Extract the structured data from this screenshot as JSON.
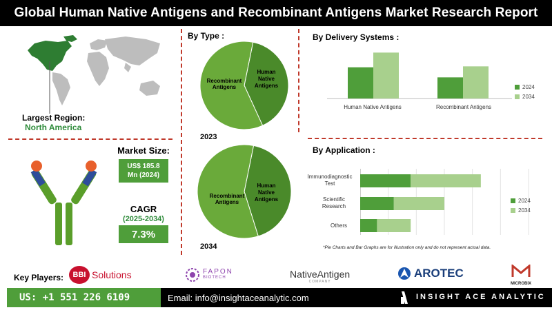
{
  "title": "Global Human Native Antigens and Recombinant Antigens Market Research Report",
  "region": {
    "label": "Largest Region:",
    "value": "North America"
  },
  "market": {
    "label": "Market Size:",
    "value": "US$ 185.8 Mn (2024)"
  },
  "cagr": {
    "label": "CAGR",
    "period": "(2025-2034)",
    "value": "7.3%"
  },
  "by_type": {
    "title": "By Type :",
    "year1": "2023",
    "year2": "2034",
    "slice_a": "Recombinant Antigens",
    "slice_b": "Human Native Antigens"
  },
  "delivery": {
    "title": "By Delivery Systems :"
  },
  "application": {
    "title": "By Application :"
  },
  "note": "*Pie Charts and Bar Graphs are for illustration only and do not represent actual data.",
  "key_players": {
    "label": "Key Players:",
    "bbi_mark": "BBI",
    "bbi": "Solutions",
    "fapon": "FAPON",
    "fapon_sub": "BIOTECH",
    "native": "NativeAntigen",
    "native_sub": "COMPANY",
    "arotec": "AROTEC",
    "microbix": "MICROBIX"
  },
  "footer": {
    "phone": "US: +1 551 226 6109",
    "email": "Email: info@insightaceanalytic.com",
    "brand": "INSIGHT ACE ANALYTIC"
  },
  "colors": {
    "dark_green": "#4f9e3a",
    "light_green": "#a8d08d",
    "pie_green": "#6aaa3a",
    "pie_dark": "#4a8a2a",
    "accent_red": "#c0392b"
  },
  "chart_data": [
    {
      "type": "pie",
      "title": "2023",
      "categories": [
        "Human Native Antigens",
        "Recombinant Antigens"
      ],
      "values": [
        40,
        60
      ]
    },
    {
      "type": "pie",
      "title": "2034",
      "categories": [
        "Human Native Antigens",
        "Recombinant Antigens"
      ],
      "values": [
        42,
        58
      ]
    },
    {
      "type": "bar",
      "title": "By Delivery Systems :",
      "categories": [
        "Human Native Antigens",
        "Recombinant Antigens"
      ],
      "series": [
        {
          "name": "2024",
          "values": [
            34,
            23
          ]
        },
        {
          "name": "2034",
          "values": [
            50,
            35
          ]
        }
      ],
      "ylim": [
        0,
        60
      ],
      "legend": "right",
      "grid": false
    },
    {
      "type": "bar",
      "orientation": "horizontal",
      "title": "By Application :",
      "categories": [
        "Immunodiagnostic Test",
        "Scientific Research",
        "Others"
      ],
      "series": [
        {
          "name": "2024",
          "values": [
            18,
            12,
            6
          ]
        },
        {
          "name": "2034",
          "values": [
            25,
            18,
            12
          ]
        }
      ],
      "stacked": true,
      "xlim": [
        0,
        60
      ],
      "legend": "right",
      "grid": true
    }
  ]
}
